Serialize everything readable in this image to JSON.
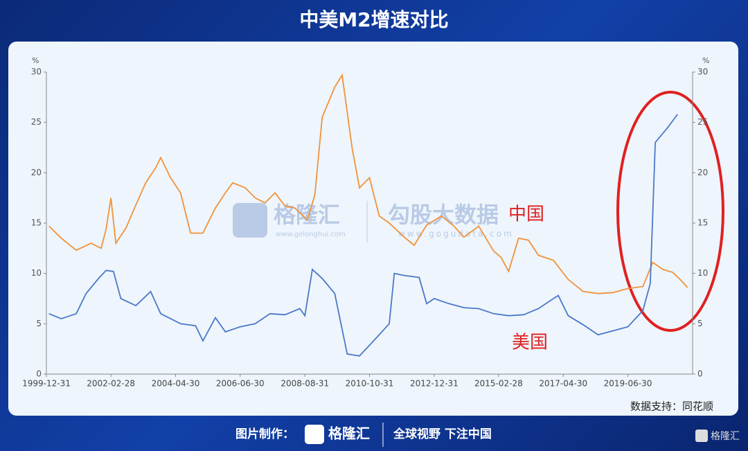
{
  "chart_data": {
    "type": "line",
    "title": "中美M2增速对比",
    "y_label": "%",
    "y2_label": "%",
    "xlim": [
      "1999-12-31",
      "2021-08-31"
    ],
    "xticks": [
      "1999-12-31",
      "2002-02-28",
      "2004-04-30",
      "2006-06-30",
      "2008-08-31",
      "2010-10-31",
      "2012-12-31",
      "2015-02-28",
      "2017-04-30",
      "2019-06-30"
    ],
    "ylim": [
      0,
      30
    ],
    "yticks": [
      0,
      5,
      10,
      15,
      20,
      25,
      30
    ],
    "y2lim": [
      0,
      30
    ],
    "y2ticks": [
      0,
      5,
      10,
      15,
      20,
      25,
      30
    ],
    "series": [
      {
        "name": "中国",
        "color": "#f0923a",
        "x": [
          "2000-01-31",
          "2000-06-30",
          "2000-12-31",
          "2001-06-30",
          "2001-10-31",
          "2001-12-31",
          "2002-02-28",
          "2002-04-30",
          "2002-08-31",
          "2002-12-31",
          "2003-04-30",
          "2003-08-31",
          "2003-10-31",
          "2004-02-29",
          "2004-06-30",
          "2004-10-31",
          "2005-03-31",
          "2005-08-31",
          "2005-12-31",
          "2006-03-31",
          "2006-08-31",
          "2006-12-31",
          "2007-04-30",
          "2007-08-31",
          "2007-12-31",
          "2008-04-30",
          "2008-09-30",
          "2008-12-31",
          "2009-03-31",
          "2009-08-31",
          "2009-11-30",
          "2010-03-31",
          "2010-06-30",
          "2010-10-31",
          "2011-02-28",
          "2011-06-30",
          "2011-12-31",
          "2012-04-30",
          "2012-09-30",
          "2013-03-31",
          "2013-08-31",
          "2013-12-31",
          "2014-06-30",
          "2014-12-31",
          "2015-03-31",
          "2015-06-30",
          "2015-10-31",
          "2016-02-29",
          "2016-06-30",
          "2016-12-31",
          "2017-06-30",
          "2017-12-31",
          "2018-06-30",
          "2018-12-31",
          "2019-06-30",
          "2019-12-31",
          "2020-04-30",
          "2020-08-31",
          "2020-12-31",
          "2021-03-31",
          "2021-06-30"
        ],
        "values": [
          14.7,
          13.5,
          12.3,
          13.0,
          12.5,
          14.4,
          17.5,
          13.0,
          14.5,
          16.8,
          19.0,
          20.5,
          21.5,
          19.5,
          18.0,
          14.0,
          14.0,
          16.5,
          18.0,
          19.0,
          18.5,
          17.5,
          17.0,
          18.0,
          16.7,
          16.5,
          15.3,
          17.8,
          25.5,
          28.5,
          29.7,
          22.5,
          18.5,
          19.5,
          15.7,
          15.0,
          13.6,
          12.8,
          14.8,
          15.7,
          14.7,
          13.6,
          14.7,
          12.2,
          11.6,
          10.2,
          13.5,
          13.3,
          11.8,
          11.3,
          9.4,
          8.2,
          8.0,
          8.1,
          8.5,
          8.7,
          11.1,
          10.4,
          10.1,
          9.4,
          8.6
        ]
      },
      {
        "name": "美国",
        "color": "#4a78c8",
        "x": [
          "2000-01-31",
          "2000-06-30",
          "2000-12-31",
          "2001-04-30",
          "2001-09-30",
          "2001-12-31",
          "2002-03-31",
          "2002-06-30",
          "2002-12-31",
          "2003-06-30",
          "2003-10-31",
          "2004-06-30",
          "2004-12-31",
          "2005-03-31",
          "2005-08-31",
          "2005-12-31",
          "2006-06-30",
          "2006-12-31",
          "2007-06-30",
          "2007-12-31",
          "2008-06-30",
          "2008-08-31",
          "2008-11-30",
          "2009-03-31",
          "2009-08-31",
          "2010-01-31",
          "2010-06-30",
          "2010-12-31",
          "2011-06-30",
          "2011-08-31",
          "2011-12-31",
          "2012-06-30",
          "2012-09-30",
          "2012-12-31",
          "2013-06-30",
          "2013-12-31",
          "2014-06-30",
          "2014-12-31",
          "2015-06-30",
          "2015-12-31",
          "2016-06-30",
          "2016-12-31",
          "2017-02-28",
          "2017-06-30",
          "2017-12-31",
          "2018-06-30",
          "2018-12-31",
          "2019-06-30",
          "2019-12-31",
          "2020-03-31",
          "2020-05-31",
          "2020-10-31",
          "2021-02-28"
        ],
        "values": [
          6.0,
          5.5,
          6.0,
          8.0,
          9.5,
          10.3,
          10.2,
          7.5,
          6.8,
          8.2,
          6.0,
          5.0,
          4.8,
          3.3,
          5.6,
          4.2,
          4.7,
          5.0,
          6.0,
          5.9,
          6.5,
          5.8,
          10.4,
          9.5,
          8.0,
          2.0,
          1.8,
          3.4,
          5.0,
          10.0,
          9.8,
          9.6,
          7.0,
          7.5,
          7.0,
          6.6,
          6.5,
          6.0,
          5.8,
          5.9,
          6.5,
          7.5,
          7.8,
          5.8,
          4.9,
          3.9,
          4.3,
          4.7,
          6.3,
          9.0,
          23.0,
          24.5,
          25.8
        ]
      }
    ],
    "source": "数据支持：同花顺"
  },
  "watermark": {
    "brand": "格隆汇",
    "brand_url": "www.gelonghui.com",
    "data_brand": "勾股大数据",
    "data_url": "www.gogudata.com"
  },
  "footer": {
    "made_by": "图片制作：",
    "logo": "格隆汇",
    "slogan": "全球视野 下注中国",
    "corner_logo": "格隆汇"
  }
}
